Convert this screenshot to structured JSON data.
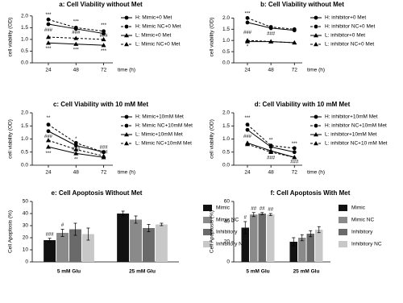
{
  "chart_data": [
    {
      "type": "line",
      "title": "a: Cell Viability without Met",
      "ylabel": "cell viability (OD)",
      "xlabel": "time (h)",
      "x": [
        24,
        48,
        72
      ],
      "xlim": [
        10,
        80
      ],
      "xticks": [
        24,
        48,
        72
      ],
      "ylim": [
        0,
        2.2
      ],
      "yticks": [
        {
          "value": 0,
          "label": "0.0"
        },
        {
          "value": 0.5,
          "label": "0.5"
        },
        {
          "value": 1,
          "label": "1.0"
        },
        {
          "value": 1.5,
          "label": "1.5"
        },
        {
          "value": 2,
          "label": "2.0"
        }
      ],
      "series": [
        {
          "name": "H: Mimic+0 Met",
          "color": "#000000",
          "marker": "circle",
          "dashed": false,
          "values": [
            1.65,
            1.45,
            1.25
          ]
        },
        {
          "name": "H: Mimic NC+0 Met",
          "color": "#000000",
          "marker": "circle",
          "dashed": true,
          "values": [
            1.85,
            1.5,
            1.35
          ]
        },
        {
          "name": "L: Mimic+0 Met",
          "color": "#000000",
          "marker": "triangle",
          "dashed": false,
          "values": [
            0.85,
            0.8,
            0.75
          ]
        },
        {
          "name": "L: Mimic NC+0 Met",
          "color": "#000000",
          "marker": "triangle",
          "dashed": true,
          "values": [
            1.1,
            1.05,
            1.0
          ]
        }
      ],
      "annotations": [
        {
          "text": "***",
          "x": 24,
          "y": 2.05
        },
        {
          "text": "###",
          "x": 24,
          "y": 1.4
        },
        {
          "text": "***",
          "x": 24,
          "y": 0.6
        },
        {
          "text": "***",
          "x": 48,
          "y": 1.75
        },
        {
          "text": "###",
          "x": 48,
          "y": 1.3
        },
        {
          "text": "***",
          "x": 48,
          "y": 0.55
        },
        {
          "text": "***",
          "x": 72,
          "y": 1.6
        },
        {
          "text": "###",
          "x": 72,
          "y": 1.15
        },
        {
          "text": "***",
          "x": 72,
          "y": 0.5
        }
      ]
    },
    {
      "type": "line",
      "title": "b: Cell Viability without Met",
      "ylabel": "cell viability (OD)",
      "xlabel": "time (h)",
      "x": [
        24,
        48,
        72
      ],
      "xlim": [
        10,
        80
      ],
      "xticks": [
        24,
        48,
        72
      ],
      "ylim": [
        0,
        2.3
      ],
      "yticks": [
        {
          "value": 0,
          "label": "0.0"
        },
        {
          "value": 0.5,
          "label": "0.5"
        },
        {
          "value": 1,
          "label": "1.0"
        },
        {
          "value": 1.5,
          "label": "1.5"
        },
        {
          "value": 2,
          "label": "2.0"
        }
      ],
      "series": [
        {
          "name": "H: inhibitor+0 Met",
          "color": "#000000",
          "marker": "circle",
          "dashed": false,
          "values": [
            1.8,
            1.55,
            1.45
          ]
        },
        {
          "name": "H: inhibitor NC+0 Met",
          "color": "#000000",
          "marker": "circle",
          "dashed": true,
          "values": [
            2.0,
            1.6,
            1.5
          ]
        },
        {
          "name": "L: inhibitor+0 Met",
          "color": "#000000",
          "marker": "triangle",
          "dashed": false,
          "values": [
            0.95,
            0.95,
            0.9
          ]
        },
        {
          "name": "L: inhibitor NC+0 Met",
          "color": "#000000",
          "marker": "triangle",
          "dashed": true,
          "values": [
            1.0,
            0.95,
            0.9
          ]
        }
      ],
      "annotations": [
        {
          "text": "***",
          "x": 24,
          "y": 2.2
        },
        {
          "text": "###",
          "x": 24,
          "y": 1.35
        },
        {
          "text": "*",
          "x": 24,
          "y": 0.72
        },
        {
          "text": "###",
          "x": 48,
          "y": 1.3
        }
      ]
    },
    {
      "type": "line",
      "title": "c: Cell Viability with 10 mM Met",
      "ylabel": "cell viability (OD)",
      "xlabel": "time (h)",
      "x": [
        24,
        48,
        72
      ],
      "xlim": [
        10,
        80
      ],
      "xticks": [
        24,
        48,
        72
      ],
      "ylim": [
        0,
        2.0
      ],
      "yticks": [
        {
          "value": 0,
          "label": "0.0"
        },
        {
          "value": 0.5,
          "label": "0.5"
        },
        {
          "value": 1,
          "label": "1.0"
        },
        {
          "value": 1.5,
          "label": "1.5"
        },
        {
          "value": 2,
          "label": "2.0"
        }
      ],
      "series": [
        {
          "name": "H: Mimic+10mM Met",
          "color": "#000000",
          "marker": "circle",
          "dashed": false,
          "values": [
            1.3,
            0.75,
            0.5
          ]
        },
        {
          "name": "H: Mimic NC+10mM Met",
          "color": "#000000",
          "marker": "circle",
          "dashed": true,
          "values": [
            1.55,
            0.85,
            0.5
          ]
        },
        {
          "name": "L: Mimic+10mM Met",
          "color": "#000000",
          "marker": "triangle",
          "dashed": false,
          "values": [
            0.7,
            0.45,
            0.3
          ]
        },
        {
          "name": "L: Mimic NC+10mM Met",
          "color": "#000000",
          "marker": "triangle",
          "dashed": true,
          "values": [
            0.95,
            0.6,
            0.35
          ]
        }
      ],
      "annotations": [
        {
          "text": "**",
          "x": 24,
          "y": 1.8
        },
        {
          "text": "###",
          "x": 24,
          "y": 1.1
        },
        {
          "text": "***",
          "x": 24,
          "y": 0.45
        },
        {
          "text": "*",
          "x": 48,
          "y": 1.0
        },
        {
          "text": "###",
          "x": 48,
          "y": 0.62
        },
        {
          "text": "**",
          "x": 48,
          "y": 0.22
        },
        {
          "text": "###",
          "x": 72,
          "y": 0.68
        },
        {
          "text": "###",
          "x": 72,
          "y": 0.5
        }
      ]
    },
    {
      "type": "line",
      "title": "d: Cell Viability with 10 mM Met",
      "ylabel": "cell viability (OD)",
      "xlabel": "time (h)",
      "x": [
        24,
        48,
        72
      ],
      "xlim": [
        10,
        80
      ],
      "xticks": [
        24,
        48,
        72
      ],
      "ylim": [
        0,
        2.0
      ],
      "yticks": [
        {
          "value": 0,
          "label": "0.0"
        },
        {
          "value": 0.5,
          "label": "0.5"
        },
        {
          "value": 1,
          "label": "1.0"
        },
        {
          "value": 1.5,
          "label": "1.5"
        },
        {
          "value": 2,
          "label": "2.0"
        }
      ],
      "series": [
        {
          "name": "H: inhibitor+10mM Met",
          "color": "#000000",
          "marker": "circle",
          "dashed": false,
          "values": [
            1.35,
            0.7,
            0.5
          ]
        },
        {
          "name": "H: inhibitor NC+10mM Met",
          "color": "#000000",
          "marker": "circle",
          "dashed": true,
          "values": [
            1.55,
            0.75,
            0.65
          ]
        },
        {
          "name": "L: inhibitor+10mM Met",
          "color": "#000000",
          "marker": "triangle",
          "dashed": false,
          "values": [
            0.85,
            0.55,
            0.3
          ]
        },
        {
          "name": "L: inhibitor NC+10 mM Met",
          "color": "#000000",
          "marker": "triangle",
          "dashed": true,
          "values": [
            0.8,
            0.5,
            0.3
          ]
        }
      ],
      "annotations": [
        {
          "text": "***",
          "x": 24,
          "y": 1.8
        },
        {
          "text": "###",
          "x": 24,
          "y": 1.1
        },
        {
          "text": "**",
          "x": 48,
          "y": 0.95
        },
        {
          "text": "*",
          "x": 48,
          "y": 0.42
        },
        {
          "text": "###",
          "x": 48,
          "y": 0.28
        },
        {
          "text": "***",
          "x": 72,
          "y": 0.82
        },
        {
          "text": "###",
          "x": 72,
          "y": 0.12
        }
      ]
    },
    {
      "type": "bar",
      "title": "e: Cell Apoptosis Without Met",
      "ylabel": "Cell Apoptosis (%)",
      "categories": [
        "5 mM Glu",
        "25 mM Glu"
      ],
      "ylim": [
        0,
        50
      ],
      "yticks": [
        0,
        10,
        20,
        30,
        40,
        50
      ],
      "series": [
        {
          "name": "Mimic",
          "color": "#111111",
          "values": [
            18,
            40
          ],
          "errors": [
            1.5,
            2
          ],
          "value_annotations": [
            "###",
            null
          ]
        },
        {
          "name": "Mimic NC",
          "color": "#8a8a8a",
          "values": [
            24,
            35
          ],
          "errors": [
            3,
            3
          ],
          "value_annotations": [
            "#",
            null
          ]
        },
        {
          "name": "Inhibitory",
          "color": "#6a6a6a",
          "values": [
            27,
            28
          ],
          "errors": [
            5,
            3
          ],
          "value_annotations": [
            null,
            null
          ]
        },
        {
          "name": "Inhibitory NC",
          "color": "#c8c8c8",
          "values": [
            23,
            31
          ],
          "errors": [
            5,
            1
          ],
          "value_annotations": [
            null,
            null
          ]
        }
      ]
    },
    {
      "type": "bar",
      "title": "f: Cell Apoptosis With Met",
      "ylabel": "Cell Apoptosis (%)",
      "categories": [
        "5 mM Glu",
        "25 mM Glu"
      ],
      "ylim": [
        0,
        60
      ],
      "yticks": [
        0,
        20,
        40,
        60
      ],
      "series": [
        {
          "name": "Mimic",
          "color": "#111111",
          "values": [
            34,
            20
          ],
          "errors": [
            6,
            4
          ],
          "value_annotations": [
            "#",
            null
          ]
        },
        {
          "name": "Mimic NC",
          "color": "#8a8a8a",
          "values": [
            47,
            24
          ],
          "errors": [
            2,
            3
          ],
          "value_annotations": [
            "##",
            null
          ]
        },
        {
          "name": "Inhibitory",
          "color": "#6a6a6a",
          "values": [
            48,
            28
          ],
          "errors": [
            1,
            3
          ],
          "value_annotations": [
            "##",
            null
          ]
        },
        {
          "name": "Inhibitory NC",
          "color": "#c8c8c8",
          "values": [
            47,
            32
          ],
          "errors": [
            1,
            3
          ],
          "value_annotations": [
            "##",
            null
          ]
        }
      ]
    }
  ]
}
